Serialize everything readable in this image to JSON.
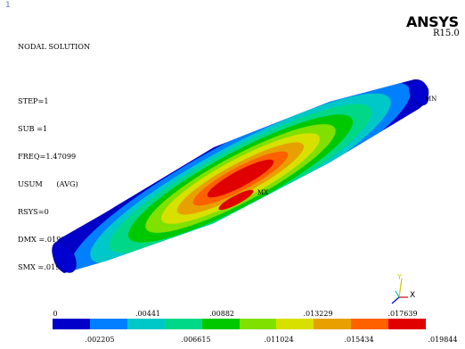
{
  "window": {
    "number": "1"
  },
  "info": {
    "lines": [
      "NODAL SOLUTION",
      "",
      "STEP=1",
      "SUB =1",
      "FREQ=1.47099",
      "USUM      (AVG)",
      "RSYS=0",
      "DMX =.019844",
      "SMX =.019844"
    ]
  },
  "brand": {
    "name": "ANSYS",
    "version": "R15.0"
  },
  "markers": {
    "max": "MX",
    "min": "MN"
  },
  "triad": {
    "x": "X",
    "y": "Y"
  },
  "legend": {
    "colors": [
      "#0000c8",
      "#0080ff",
      "#00c8c8",
      "#00d888",
      "#00c800",
      "#80e000",
      "#d8e000",
      "#e8a000",
      "#ff6000",
      "#e00000"
    ],
    "top_labels": [
      "0",
      ".00441",
      ".00882",
      ".013229",
      ".017639"
    ],
    "bottom_labels": [
      ".002205",
      ".006615",
      ".011024",
      ".015434",
      ".019844"
    ]
  }
}
